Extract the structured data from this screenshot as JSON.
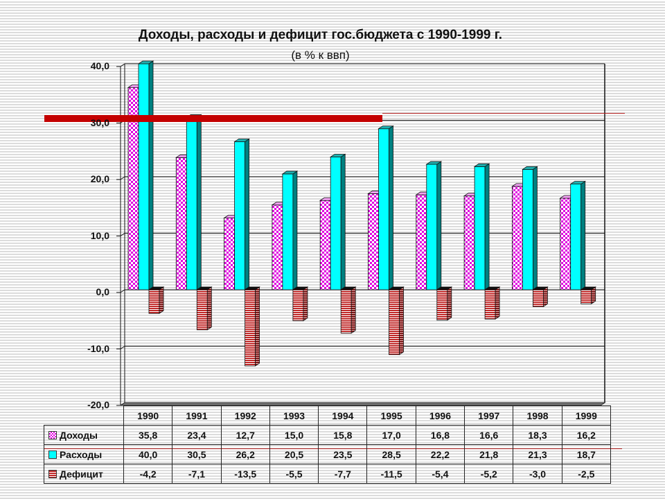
{
  "header": {
    "title": "Доходы, расходы и дефицит гос.бюджета с 1990-1999 г.",
    "subtitle": "(в % к ввп)"
  },
  "axis": {
    "ticks": [
      "40,0",
      "30,0",
      "20,0",
      "10,0",
      "0,0",
      "-10,0",
      "-20,0"
    ]
  },
  "table": {
    "years": [
      "1990",
      "1991",
      "1992",
      "1993",
      "1994",
      "1995",
      "1996",
      "1997",
      "1998",
      "1999"
    ],
    "rows": [
      {
        "label": "Доходы",
        "key": "dohody",
        "values": [
          "35,8",
          "23,4",
          "12,7",
          "15,0",
          "15,8",
          "17,0",
          "16,8",
          "16,6",
          "18,3",
          "16,2"
        ]
      },
      {
        "label": "Расходы",
        "key": "rashody",
        "values": [
          "40,0",
          "30,5",
          "26,2",
          "20,5",
          "23,5",
          "28,5",
          "22,2",
          "21,8",
          "21,3",
          "18,7"
        ]
      },
      {
        "label": "Дефицит",
        "key": "deficit",
        "values": [
          "-4,2",
          "-7,1",
          "-13,5",
          "-5,5",
          "-7,7",
          "-11,5",
          "-5,4",
          "-5,2",
          "-3,0",
          "-2,5"
        ]
      }
    ]
  },
  "colors": {
    "dohody": "#e000e0",
    "rashody": "#00ffff",
    "rashody_side": "#008080",
    "deficit": "#c02828",
    "accent_red": "#c40000"
  },
  "chart_data": {
    "type": "bar",
    "title": "Доходы, расходы и дефицит гос.бюджета с 1990-1999 г.",
    "subtitle": "(в % к ввп)",
    "categories": [
      "1990",
      "1991",
      "1992",
      "1993",
      "1994",
      "1995",
      "1996",
      "1997",
      "1998",
      "1999"
    ],
    "series": [
      {
        "name": "Доходы",
        "values": [
          35.8,
          23.4,
          12.7,
          15.0,
          15.8,
          17.0,
          16.8,
          16.6,
          18.3,
          16.2
        ]
      },
      {
        "name": "Расходы",
        "values": [
          40.0,
          30.5,
          26.2,
          20.5,
          23.5,
          28.5,
          22.2,
          21.8,
          21.3,
          18.7
        ]
      },
      {
        "name": "Дефицит",
        "values": [
          -4.2,
          -7.1,
          -13.5,
          -5.5,
          -7.7,
          -11.5,
          -5.4,
          -5.2,
          -3.0,
          -2.5
        ]
      }
    ],
    "xlabel": "",
    "ylabel": "",
    "ylim": [
      -20,
      40
    ],
    "yticks": [
      -20,
      -10,
      0,
      10,
      20,
      30,
      40
    ],
    "grid": true,
    "legend_position": "data table (bottom)",
    "style": "3D clustered column with data table"
  }
}
